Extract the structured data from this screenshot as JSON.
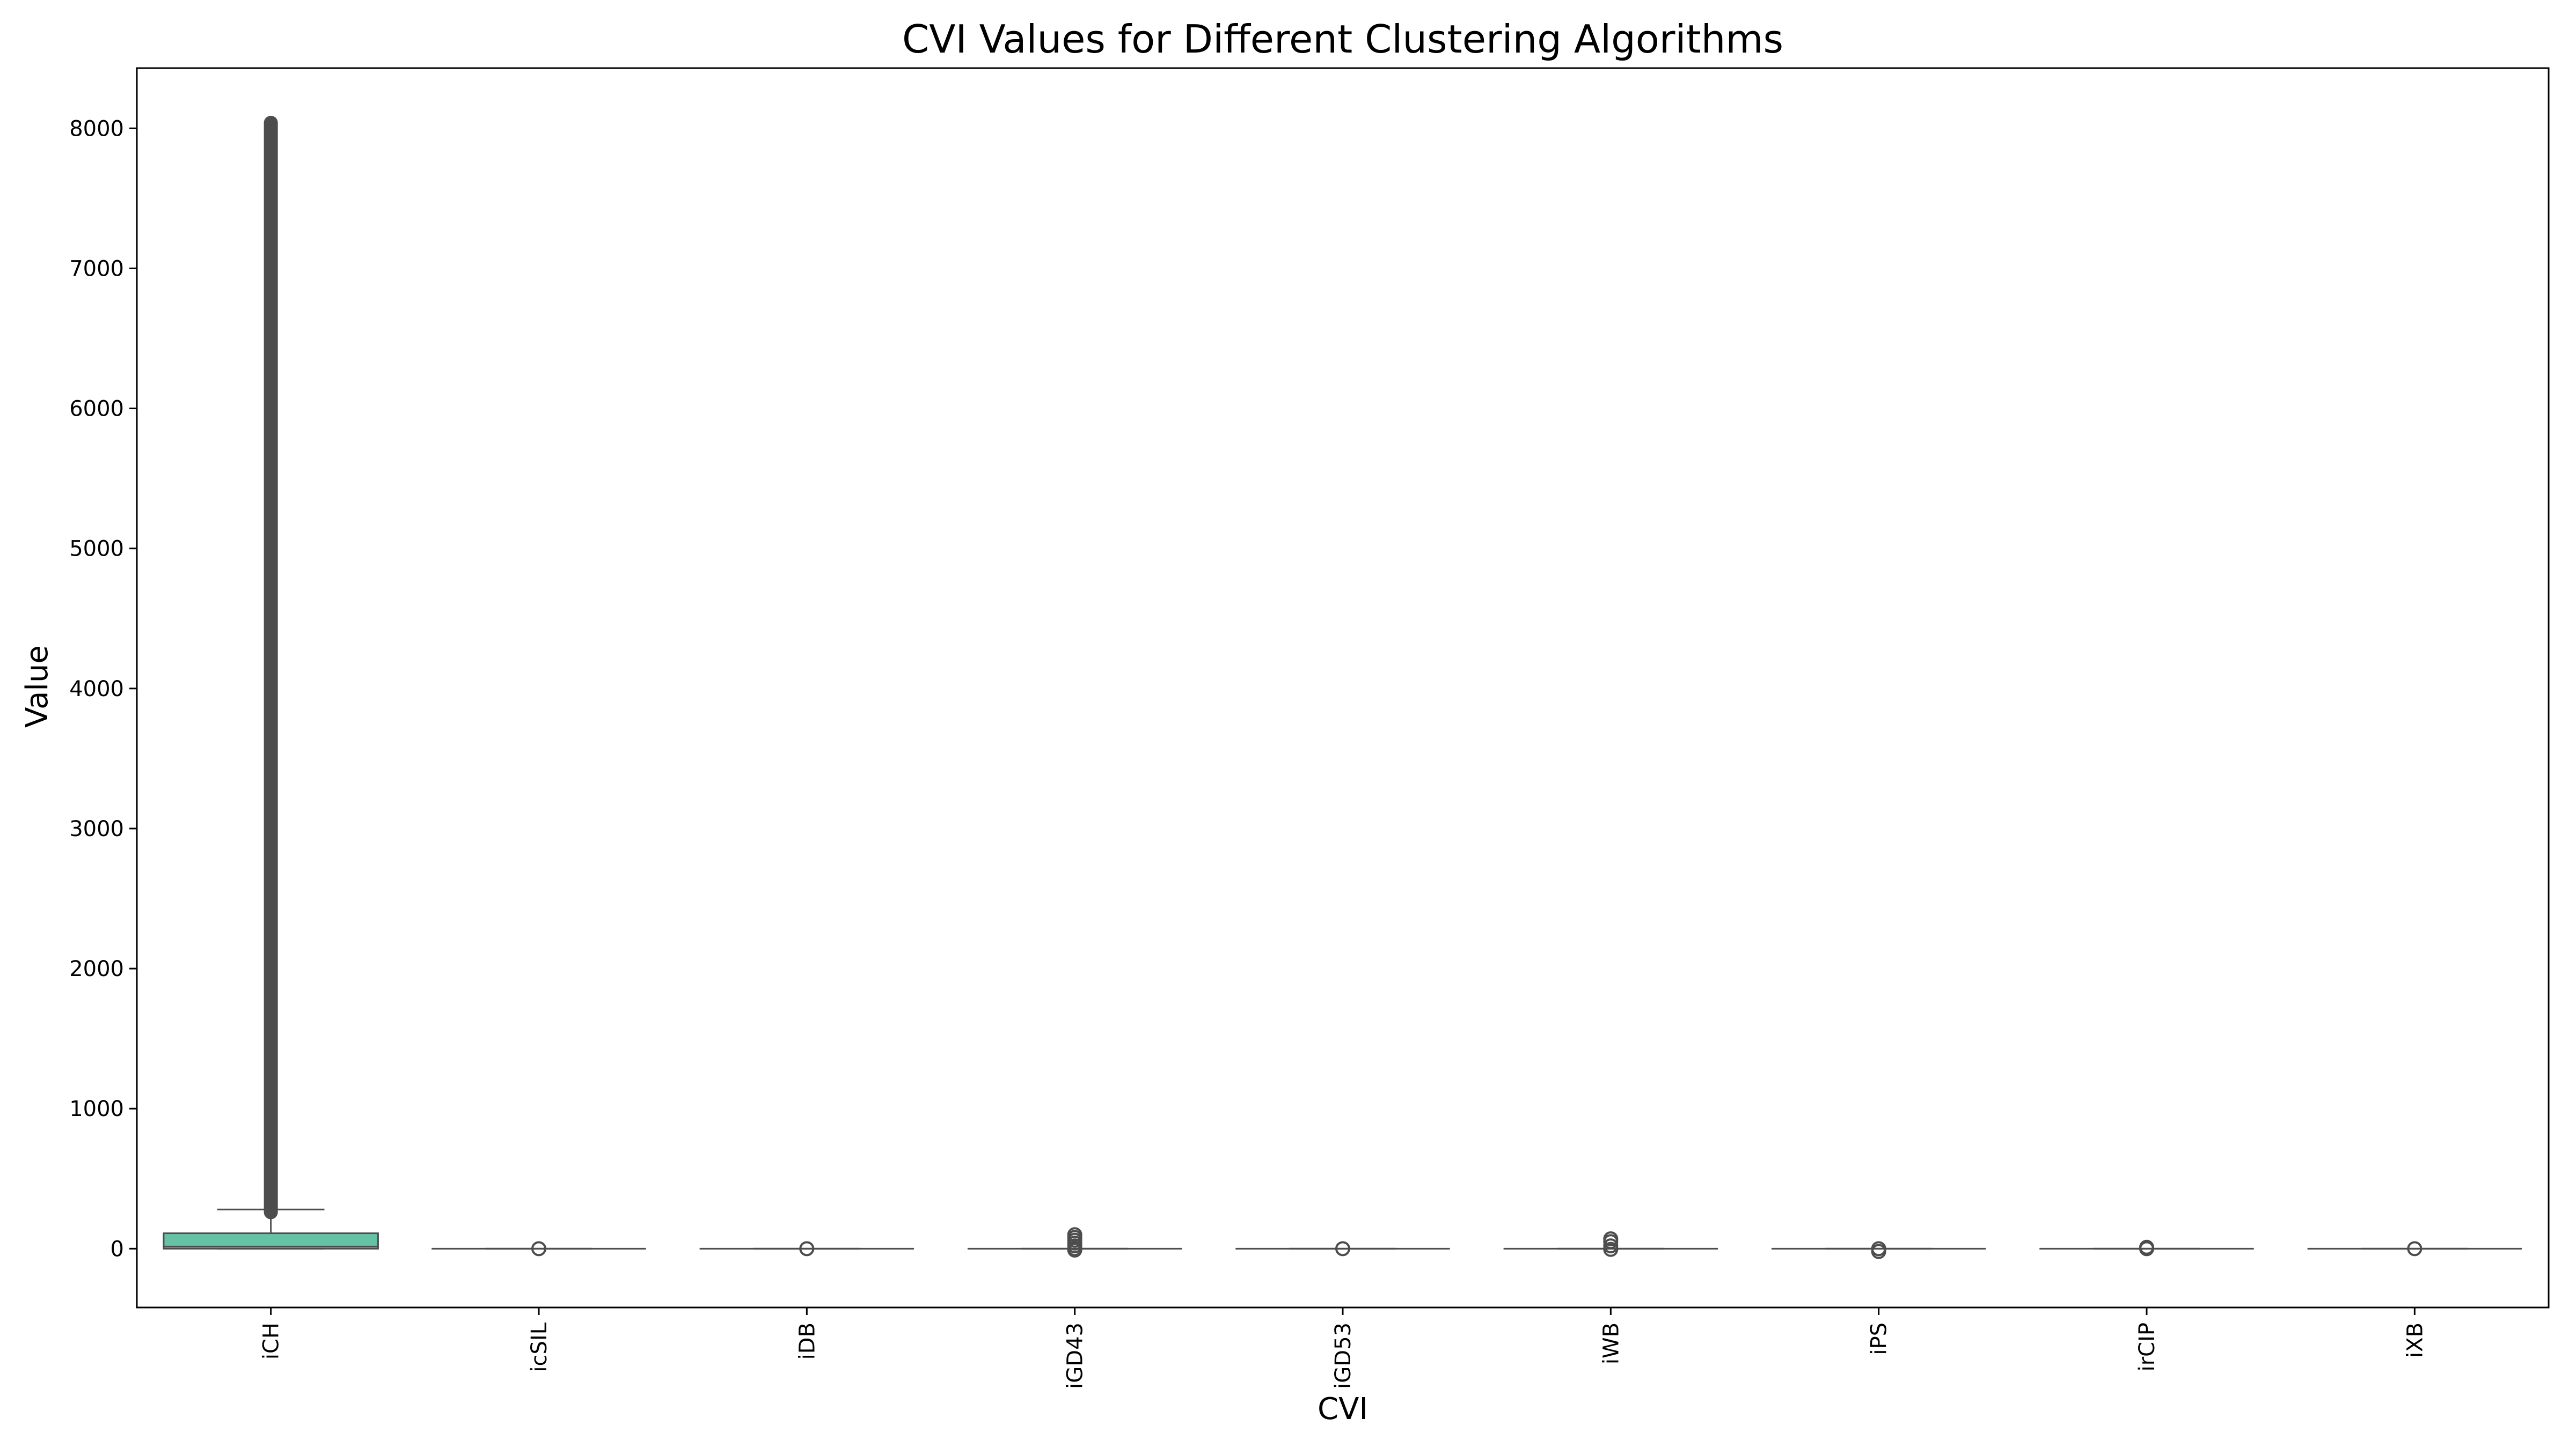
{
  "chart_data": {
    "type": "box",
    "title": "CVI Values for Different Clustering Algorithms",
    "xlabel": "CVI",
    "ylabel": "Value",
    "ylim": [
      -420,
      8430
    ],
    "yticks": [
      "0",
      "1000",
      "2000",
      "3000",
      "4000",
      "5000",
      "6000",
      "7000",
      "8000"
    ],
    "grid": false,
    "legend": "none",
    "colors": {
      "box_fill": "#66c2a5",
      "box_edge": "#4d4d4d",
      "outlier": "#4d4d4d",
      "axis": "#000000"
    },
    "categories": [
      "iCH",
      "icSIL",
      "iDB",
      "iGD43",
      "iGD53",
      "iWB",
      "iPS",
      "irCIP",
      "iXB"
    ],
    "boxes": [
      {
        "min": 0,
        "q1": 0,
        "median": 15,
        "q3": 110,
        "max": 280,
        "outliers_from": 260,
        "outliers_to": 8040
      },
      {
        "min": 0,
        "q1": 0,
        "median": 0,
        "q3": 0,
        "max": 0,
        "outliers": [
          0
        ]
      },
      {
        "min": 0,
        "q1": 0,
        "median": 0,
        "q3": 0,
        "max": 0,
        "outliers": [
          0
        ]
      },
      {
        "min": 0,
        "q1": 0,
        "median": 0,
        "q3": 0,
        "max": 0,
        "outliers": [
          -10,
          0,
          20,
          40,
          60,
          80,
          100
        ]
      },
      {
        "min": 0,
        "q1": 0,
        "median": 0,
        "q3": 0,
        "max": 0,
        "outliers": [
          0
        ]
      },
      {
        "min": 0,
        "q1": 0,
        "median": 0,
        "q3": 0,
        "max": 0,
        "outliers": [
          -5,
          20,
          50,
          70
        ]
      },
      {
        "min": 0,
        "q1": 0,
        "median": 0,
        "q3": 0,
        "max": 0,
        "outliers": [
          -20,
          0
        ]
      },
      {
        "min": 0,
        "q1": 0,
        "median": 0,
        "q3": 0,
        "max": 0,
        "outliers": [
          0,
          10
        ]
      },
      {
        "min": 0,
        "q1": 0,
        "median": 0,
        "q3": 0,
        "max": 0,
        "outliers": [
          0
        ]
      }
    ]
  }
}
